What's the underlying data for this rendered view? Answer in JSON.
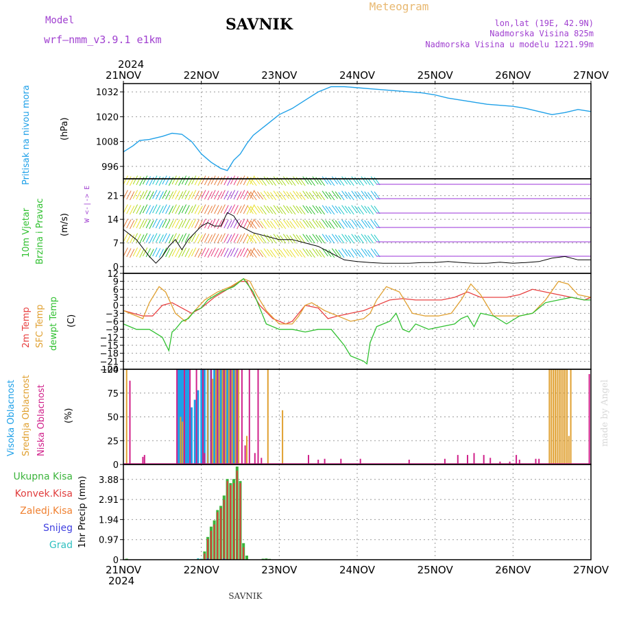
{
  "header": {
    "model_label": "Model",
    "model_name": "wrf–nmm_v3.9.1  e1km",
    "station": "SAVNIK",
    "product": "Meteogram",
    "location_lines": [
      "lon,lat (19E, 42.9N)",
      "Nadmorska Visina 825m",
      "Nadmorska Visina u modelu 1221.99m"
    ],
    "year_top": "2024",
    "year_bottom": "2024",
    "footer_station": "SAVNIK",
    "watermark": "made by Angel"
  },
  "time_axis": {
    "labels": [
      "21NOV",
      "22NOV",
      "23NOV",
      "24NOV",
      "25NOV",
      "26NOV",
      "27NOV"
    ],
    "range_hours": [
      0,
      144
    ]
  },
  "colors": {
    "pressure": "#1ea0e8",
    "wind_low": "#1ec8c8",
    "temp_2m": "#e84040",
    "temp_sfc": "#e0a030",
    "dewpt": "#30c030",
    "high_cloud": "#1ea0e8",
    "mid_cloud": "#e0a030",
    "low_cloud": "#d0208a",
    "total_precip": "#3cb43c",
    "conv_precip": "#e03c3c",
    "freezing": "#f08030",
    "snow": "#4040e0",
    "hail": "#30c0c0",
    "wind_purple": "#9a30d8"
  },
  "chart_data": [
    {
      "type": "line",
      "id": "pressure",
      "ylabel": "Pritisak na nivou mora",
      "unit": "(hPa)",
      "ylim": [
        990,
        1036
      ],
      "yticks": [
        996,
        1008,
        1020,
        1032
      ],
      "grid": true,
      "series": [
        {
          "name": "Pritisak na nivou mora",
          "x": [
            0,
            3,
            5,
            8,
            12,
            15,
            18,
            21,
            24,
            27,
            30,
            32,
            34,
            36,
            38,
            40,
            44,
            48,
            52,
            56,
            60,
            64,
            68,
            72,
            76,
            80,
            84,
            88,
            92,
            96,
            100,
            104,
            108,
            112,
            116,
            120,
            124,
            128,
            132,
            136,
            140,
            144
          ],
          "y": [
            1003,
            1006,
            1008.5,
            1009,
            1010.5,
            1012,
            1011.5,
            1008,
            1002,
            998,
            995,
            994,
            999,
            1002,
            1007,
            1011,
            1016,
            1021,
            1024,
            1028,
            1032,
            1034.5,
            1034.5,
            1034,
            1033.5,
            1033,
            1032.5,
            1032,
            1031.5,
            1030.5,
            1029,
            1028,
            1027,
            1026,
            1025.5,
            1025,
            1024,
            1022.5,
            1021,
            1022,
            1023.5,
            1022.5
          ]
        }
      ]
    },
    {
      "type": "line",
      "id": "wind",
      "ylabel": "10m Vjetar Brzina i Pravac",
      "unit": "(m/s)",
      "ylim": [
        -2,
        26
      ],
      "yticks": [
        0,
        7,
        14,
        21
      ],
      "compass": "W <-|-> E",
      "grid": true,
      "series": [
        {
          "name": "speed",
          "x": [
            0,
            4,
            8,
            10,
            12,
            14,
            16,
            18,
            20,
            22,
            24,
            26,
            28,
            30,
            32,
            34,
            36,
            40,
            44,
            48,
            52,
            56,
            60,
            64,
            68,
            72,
            76,
            80,
            84,
            88,
            92,
            96,
            100,
            104,
            108,
            112,
            116,
            120,
            124,
            128,
            132,
            136,
            140,
            144
          ],
          "y": [
            11,
            8,
            3,
            1,
            3,
            6,
            8,
            5,
            8,
            10,
            12,
            13,
            12,
            12,
            16,
            15,
            12,
            10,
            9,
            8,
            8,
            7,
            6,
            4,
            2,
            1.5,
            1.2,
            1,
            1,
            1,
            1.2,
            1.2,
            1.5,
            1.2,
            1,
            1,
            1.3,
            1,
            1.2,
            1.5,
            2.5,
            3,
            2,
            2
          ]
        }
      ]
    },
    {
      "type": "line",
      "id": "temperature",
      "ylabel": "2m Temp / SFC Temp / dewpt Temp",
      "unit": "(C)",
      "ylim": [
        -24,
        12
      ],
      "yticks": [
        -24,
        -21,
        -18,
        -15,
        -12,
        -9,
        -6,
        -3,
        0,
        3,
        6,
        9,
        12
      ],
      "grid": true,
      "series": [
        {
          "name": "2m Temp",
          "x": [
            0,
            6,
            9,
            12,
            15,
            18,
            21,
            24,
            28,
            32,
            36,
            38,
            40,
            42,
            46,
            50,
            52,
            54,
            56,
            60,
            63,
            66,
            70,
            74,
            78,
            82,
            86,
            90,
            94,
            98,
            102,
            106,
            110,
            114,
            118,
            122,
            126,
            130,
            134,
            138,
            142,
            144
          ],
          "y": [
            -2,
            -4,
            -4,
            0,
            1,
            -1,
            -3,
            -1,
            3,
            6,
            9,
            9,
            4,
            0,
            -5,
            -7,
            -6,
            -3,
            0,
            -1,
            -5,
            -4,
            -3,
            -2,
            0,
            2,
            2.5,
            2,
            2,
            2,
            3,
            5,
            3,
            3,
            3,
            4,
            6,
            5,
            4,
            3,
            2,
            3
          ]
        },
        {
          "name": "SFC Temp",
          "x": [
            0,
            6,
            8,
            11,
            13,
            16,
            19,
            22,
            25,
            29,
            33,
            37,
            39,
            41,
            44,
            48,
            52,
            54,
            56,
            58,
            62,
            66,
            70,
            74,
            76,
            78,
            81,
            85,
            89,
            93,
            97,
            101,
            104,
            107,
            110,
            114,
            118,
            122,
            126,
            130,
            134,
            137,
            140,
            144
          ],
          "y": [
            -2,
            -5,
            1,
            7,
            5,
            -3,
            -6,
            -2,
            2,
            5,
            7,
            10,
            9,
            4,
            -2,
            -7,
            -7,
            -4,
            0,
            1,
            -2,
            -4,
            -6,
            -5,
            -3,
            2,
            7,
            5,
            -3,
            -4,
            -4,
            -3,
            2,
            8,
            4,
            -4,
            -4,
            -4,
            -3,
            2,
            9,
            8,
            4,
            3
          ]
        },
        {
          "name": "dewpt Temp",
          "x": [
            0,
            4,
            8,
            12,
            14,
            15,
            16,
            18,
            20,
            22,
            24,
            26,
            30,
            34,
            37,
            40,
            44,
            48,
            52,
            56,
            60,
            64,
            68,
            70,
            72,
            74,
            75,
            76,
            78,
            80,
            82,
            84,
            86,
            88,
            90,
            94,
            98,
            102,
            104,
            106,
            108,
            110,
            114,
            118,
            122,
            126,
            130,
            134,
            138,
            142,
            144
          ],
          "y": [
            -7,
            -9,
            -9,
            -12,
            -17,
            -10,
            -9,
            -6,
            -5,
            -2,
            -1,
            2,
            5,
            7,
            10,
            5,
            -7,
            -9,
            -9,
            -10,
            -9,
            -9,
            -15,
            -19,
            -20,
            -21,
            -22,
            -14,
            -8,
            -7,
            -6,
            -3,
            -9,
            -10,
            -7,
            -9,
            -8,
            -7,
            -5,
            -4,
            -8,
            -3,
            -4,
            -7,
            -4,
            -3,
            1,
            2,
            3,
            2,
            2
          ]
        }
      ]
    },
    {
      "type": "bar",
      "id": "clouds",
      "ylabel": "Visoka Oblacnost / Srednja Oblacnost / Niska Oblacnost",
      "unit": "(%)",
      "ylim": [
        0,
        100
      ],
      "yticks": [
        0,
        25,
        50,
        75,
        100
      ],
      "grid": true,
      "series": [
        {
          "name": "Visoka Oblacnost",
          "x": [
            17,
            17.5,
            18,
            18.5,
            19,
            19.5,
            20,
            21,
            22,
            23,
            24,
            25,
            26,
            27,
            28,
            29,
            30,
            31,
            32,
            33,
            34,
            35
          ],
          "y": [
            100,
            100,
            100,
            100,
            100,
            100,
            100,
            60,
            68,
            78,
            100,
            100,
            100,
            100,
            100,
            100,
            100,
            100,
            100,
            100,
            100,
            100
          ]
        },
        {
          "name": "Srednja Oblacnost",
          "x": [
            1,
            17.6,
            18.2,
            26,
            27.5,
            28.5,
            29.5,
            30.5,
            31.5,
            32.5,
            33.5,
            34.5,
            35.5,
            38,
            44.5,
            49,
            131.2,
            131.8,
            132.4,
            133,
            133.6,
            134.2,
            134.8,
            135.4,
            136,
            136.6,
            137.2,
            137.8
          ],
          "y": [
            100,
            50,
            45,
            100,
            90,
            100,
            100,
            100,
            100,
            100,
            100,
            100,
            100,
            30,
            100,
            57,
            100,
            100,
            100,
            100,
            100,
            100,
            100,
            100,
            100,
            100,
            30,
            100
          ]
        },
        {
          "name": "Niska Oblacnost",
          "x": [
            2,
            6,
            6.5,
            16.5,
            18.8,
            20.5,
            22.5,
            24.5,
            25,
            27,
            29,
            31,
            33,
            35,
            36.5,
            37.5,
            38.8,
            40.5,
            41.5,
            42.5,
            57,
            60,
            62,
            67,
            73,
            88,
            99,
            103,
            106,
            108,
            111,
            113,
            116,
            119,
            121,
            122,
            127,
            128,
            143.5
          ],
          "y": [
            88,
            8,
            10,
            100,
            100,
            100,
            100,
            100,
            12,
            100,
            100,
            100,
            100,
            100,
            100,
            20,
            100,
            12,
            100,
            7,
            10,
            5,
            6,
            6,
            6,
            5,
            6,
            10,
            10,
            12,
            10,
            7,
            3,
            3,
            10,
            5,
            6,
            6,
            95
          ]
        }
      ]
    },
    {
      "type": "bar",
      "id": "precip",
      "ylabel": "1hr Precip",
      "unit": "(mm)",
      "ylim": [
        0,
        4.6
      ],
      "yticks": [
        0,
        0.97,
        1.94,
        2.91,
        3.88
      ],
      "grid": true,
      "series": [
        {
          "name": "Ukupna Kisa",
          "x": [
            1,
            24,
            25,
            26,
            27,
            28,
            29,
            30,
            31,
            32,
            33,
            34,
            35,
            36,
            37,
            38,
            43,
            44,
            45
          ],
          "y": [
            0.05,
            0.05,
            0.4,
            1.1,
            1.6,
            1.9,
            2.4,
            2.6,
            3.1,
            3.9,
            3.7,
            3.9,
            4.5,
            3.8,
            0.8,
            0.2,
            0.05,
            0.06,
            0.04
          ]
        },
        {
          "name": "Konvek.Kisa",
          "x": [
            25,
            26,
            27,
            28,
            29,
            30,
            31,
            32,
            33,
            34,
            35,
            36,
            37
          ],
          "y": [
            0.3,
            1.0,
            1.4,
            1.7,
            2.3,
            2.5,
            2.9,
            3.8,
            3.6,
            3.7,
            4.3,
            3.7,
            0.6
          ]
        },
        {
          "name": "Zaledj.Kisa",
          "x": [],
          "y": []
        },
        {
          "name": "Snijeg",
          "x": [
            26,
            31
          ],
          "y": [
            0.06,
            0.05
          ]
        },
        {
          "name": "Grad",
          "x": [
            23,
            24
          ],
          "y": [
            0.07,
            0.05
          ]
        }
      ]
    }
  ]
}
